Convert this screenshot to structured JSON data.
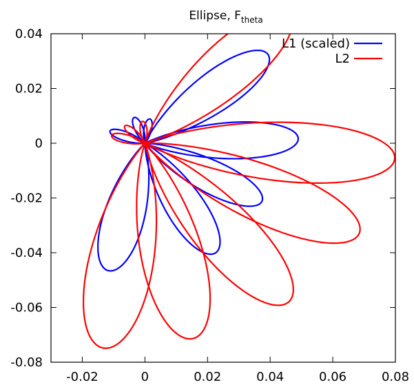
{
  "chart_data": {
    "type": "line",
    "title": {
      "main": "Ellipse, F",
      "subscript": "theta"
    },
    "xlabel": "",
    "ylabel": "",
    "xlim": [
      -0.03,
      0.08
    ],
    "ylim": [
      -0.08,
      0.04
    ],
    "x_ticks": [
      -0.02,
      0,
      0.02,
      0.04,
      0.06,
      0.08
    ],
    "x_tick_labels": [
      "-0.02",
      "0",
      "0.02",
      "0.04",
      "0.06",
      "0.08"
    ],
    "y_ticks": [
      0.04,
      0.02,
      0,
      -0.02,
      -0.04,
      -0.06,
      -0.08
    ],
    "y_tick_labels": [
      "0.04",
      "0.02",
      "0",
      "-0.02",
      "-0.04",
      "-0.06",
      "-0.08"
    ],
    "grid": false,
    "legend_position": "top-right",
    "series": [
      {
        "name": "L1 (scaled)",
        "color": "#0000ff",
        "petals": [
          {
            "angle_deg": 40,
            "length": 0.051
          },
          {
            "angle_deg": 2,
            "length": 0.049
          },
          {
            "angle_deg": -30,
            "length": 0.043
          },
          {
            "angle_deg": -61,
            "length": 0.046
          },
          {
            "angle_deg": -104,
            "length": 0.048
          },
          {
            "angle_deg": 158,
            "length": 0.012
          },
          {
            "angle_deg": 110,
            "length": 0.01
          },
          {
            "angle_deg": 80,
            "length": 0.009
          }
        ]
      },
      {
        "name": "L2",
        "color": "#ff0000",
        "petals": [
          {
            "angle_deg": 46,
            "length": 0.066
          },
          {
            "angle_deg": -4,
            "length": 0.08
          },
          {
            "angle_deg": -26,
            "length": 0.076
          },
          {
            "angle_deg": -52,
            "length": 0.074
          },
          {
            "angle_deg": -78,
            "length": 0.073
          },
          {
            "angle_deg": -100,
            "length": 0.076
          },
          {
            "angle_deg": 165,
            "length": 0.011
          },
          {
            "angle_deg": 135,
            "length": 0.009
          },
          {
            "angle_deg": 95,
            "length": 0.008
          }
        ]
      }
    ]
  }
}
